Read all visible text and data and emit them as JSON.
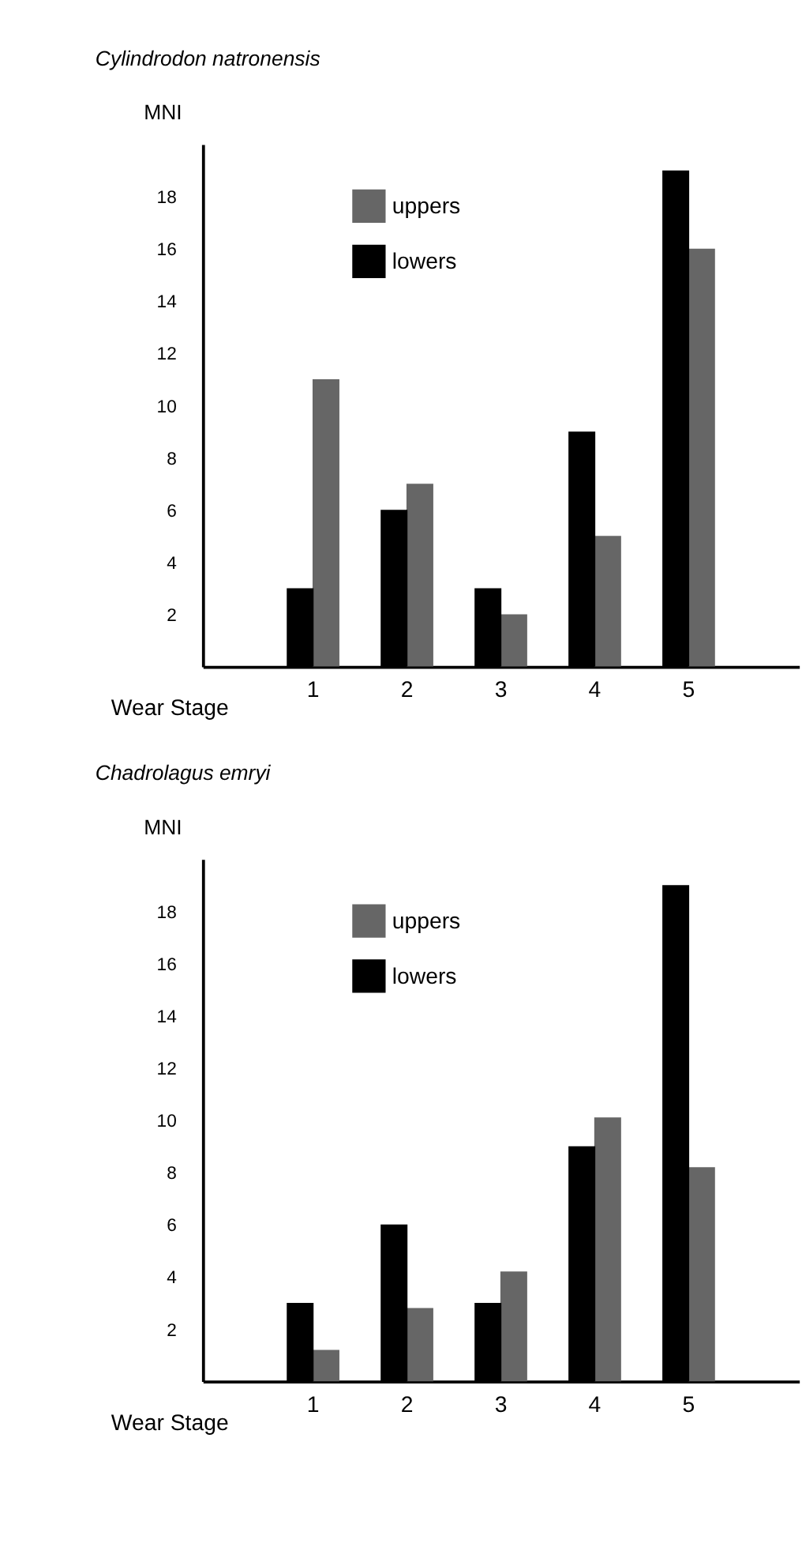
{
  "chart_data": [
    {
      "type": "bar",
      "title": "Cylindrodon natronensis",
      "xlabel": "Wear Stage",
      "ylabel": "MNI",
      "categories": [
        "1",
        "2",
        "3",
        "4",
        "5"
      ],
      "series": [
        {
          "name": "uppers",
          "color": "#666666",
          "values": [
            11,
            7,
            2,
            5,
            16
          ]
        },
        {
          "name": "lowers",
          "color": "#000000",
          "values": [
            3,
            6,
            3,
            9,
            19
          ]
        }
      ],
      "ylim": [
        0,
        20
      ],
      "yticks": [
        2,
        4,
        6,
        8,
        10,
        12,
        14,
        16,
        18
      ],
      "grid": false,
      "legend": "top left"
    },
    {
      "type": "bar",
      "title": "Chadrolagus emryi",
      "xlabel": "Wear Stage",
      "ylabel": "MNI",
      "categories": [
        "1",
        "2",
        "3",
        "4",
        "5"
      ],
      "series": [
        {
          "name": "uppers",
          "color": "#666666",
          "values": [
            1.2,
            2.8,
            4.2,
            10.1,
            8.2
          ]
        },
        {
          "name": "lowers",
          "color": "#000000",
          "values": [
            3,
            6,
            3,
            9,
            19
          ]
        }
      ],
      "ylim": [
        0,
        20
      ],
      "yticks": [
        2,
        4,
        6,
        8,
        10,
        12,
        14,
        16,
        18
      ],
      "grid": false,
      "legend": "top left"
    }
  ]
}
